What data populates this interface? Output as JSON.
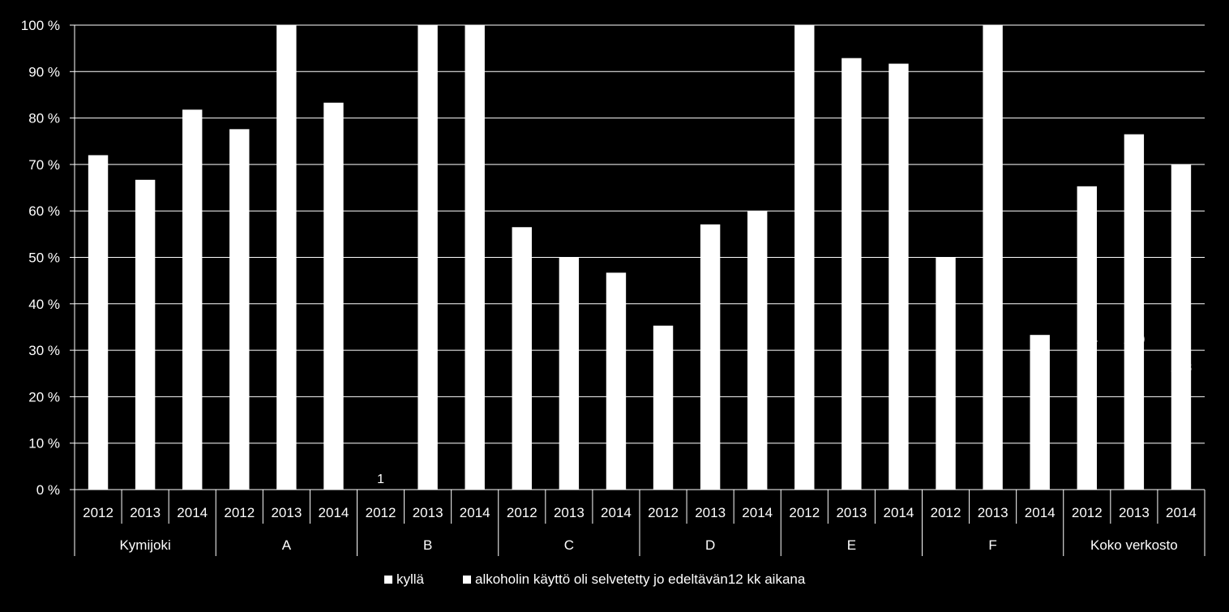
{
  "chart_data": {
    "type": "bar",
    "title": "",
    "xlabel": "",
    "ylabel": "",
    "ylim": [
      0,
      100
    ],
    "y_ticks": [
      "0 %",
      "10 %",
      "20 %",
      "30 %",
      "40 %",
      "50 %",
      "60 %",
      "70 %",
      "80 %",
      "90 %",
      "100 %"
    ],
    "grid": true,
    "legend_position": "bottom",
    "colors": {
      "background": "#000000",
      "bars": "#ffffff",
      "grid": "#ffffff",
      "text": "#ffffff"
    },
    "groups": [
      {
        "name": "Kymijoki",
        "years": [
          "2012",
          "2013",
          "2014"
        ],
        "values": [
          72,
          66.7,
          81.8
        ]
      },
      {
        "name": "A",
        "years": [
          "2012",
          "2013",
          "2014"
        ],
        "values": [
          77.6,
          100,
          83.3
        ]
      },
      {
        "name": "B",
        "years": [
          "2012",
          "2013",
          "2014"
        ],
        "values": [
          0,
          100,
          100
        ]
      },
      {
        "name": "C",
        "years": [
          "2012",
          "2013",
          "2014"
        ],
        "values": [
          56.5,
          50,
          46.7
        ]
      },
      {
        "name": "D",
        "years": [
          "2012",
          "2013",
          "2014"
        ],
        "values": [
          35.3,
          57.1,
          60
        ]
      },
      {
        "name": "E",
        "years": [
          "2012",
          "2013",
          "2014"
        ],
        "values": [
          100,
          92.9,
          91.7
        ]
      },
      {
        "name": "F",
        "years": [
          "2012",
          "2013",
          "2014"
        ],
        "values": [
          50,
          100,
          33.3
        ]
      },
      {
        "name": "Koko verkosto",
        "years": [
          "2012",
          "2013",
          "2014"
        ],
        "values": [
          65.3,
          76.5,
          70
        ]
      }
    ],
    "series": [
      {
        "name": "kyllä"
      },
      {
        "name": "alkoholin käyttö oli selvetetty jo edeltävän12 kk aikana"
      }
    ],
    "annotations": [
      {
        "text": "1",
        "group": "B",
        "year": "2012",
        "y": 0
      },
      {
        "text": "124",
        "group": "Koko verkosto",
        "year": "2012",
        "y": 30
      },
      {
        "text": "130",
        "group": "Koko verkosto",
        "year": "2013",
        "y": 30
      },
      {
        "text": "128",
        "group": "Koko verkosto",
        "year": "2014",
        "y": 24
      }
    ]
  }
}
